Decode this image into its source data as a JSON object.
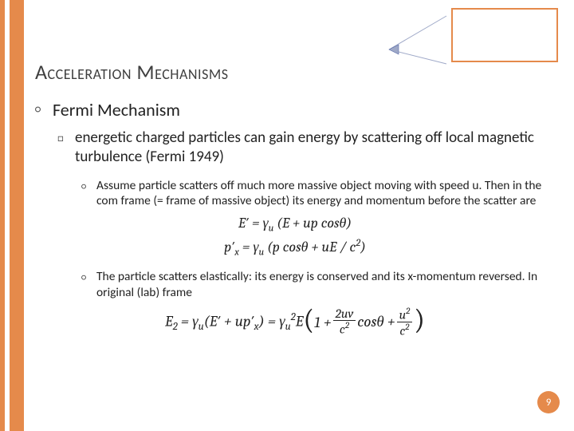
{
  "colors": {
    "accent": "#e58a4b",
    "accent_border": "#c76a2a",
    "title_color": "#3f3f3f",
    "text_color": "#222222",
    "arrow_color": "#9fa9c8",
    "arrow_stroke": "#5a6ca8"
  },
  "title": "Acceleration Mechanisms",
  "lvl1": {
    "text": "Fermi Mechanism"
  },
  "lvl2": {
    "text": "energetic charged particles can gain energy by scattering off local magnetic turbulence (Fermi 1949)"
  },
  "lvl3a": {
    "text": "Assume particle scatters off much more massive object moving with speed u.  Then in the com frame (= frame of massive object) its energy and momentum before the scatter are"
  },
  "equations1": {
    "line1_html": "E&prime; = &gamma;<sub>u</sub> (E + up cos&theta;)",
    "line2_html": "p&prime;<sub>x</sub> = &gamma;<sub>u</sub> (p cos&theta; + uE / c<sup>2</sup>)"
  },
  "lvl3b": {
    "text": "The particle scatters elastically: its energy is conserved and its x-momentum reversed.  In original (lab) frame"
  },
  "equations2": {
    "prefix_html": "E<sub>2</sub> = &gamma;<sub>u</sub>(E&prime; + up&prime;<sub>x</sub>) = &gamma;<sub>u</sub><sup>2</sup>E",
    "term1_plain": "1 + ",
    "frac1_num": "2uv",
    "frac1_den_html": "c<sup>2</sup>",
    "mid_html": " cos&theta; + ",
    "frac2_num_html": "u<sup>2</sup>",
    "frac2_den_html": "c<sup>2</sup>"
  },
  "page_number": "9"
}
